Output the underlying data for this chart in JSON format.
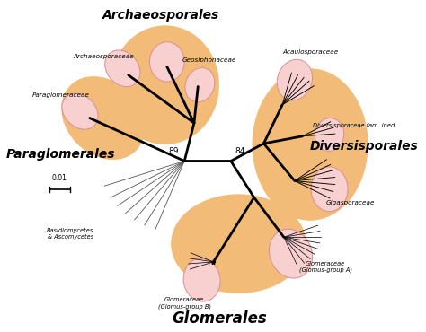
{
  "bg_color": "#ffffff",
  "tan_color": "#F2BC78",
  "blob_facecolor": "#F8D0D0",
  "blob_edgecolor": "#D89090",
  "lw_thick": 2.0,
  "lw_thin": 0.65,
  "lw_outgroup": 0.6,
  "n89x": 0.415,
  "n89y": 0.515,
  "n84x": 0.535,
  "n84y": 0.515,
  "node89_label": "89",
  "node84_label": "84",
  "scale_label": "0.01"
}
